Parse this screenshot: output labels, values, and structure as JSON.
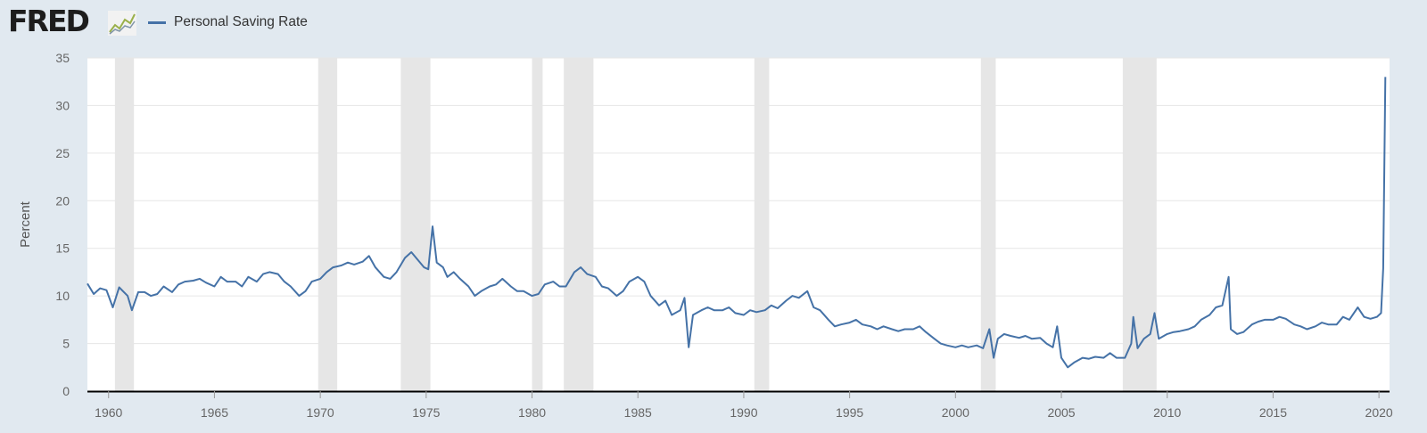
{
  "header": {
    "logo_text": "FRED",
    "logo_icon": "fred-chart-icon"
  },
  "colors": {
    "background": "#e1e9f0",
    "plot_background": "#ffffff",
    "series_line": "#4572a7",
    "recession_band": "#e6e6e6",
    "gridline": "#e6e6e6",
    "axis_line": "#000000"
  },
  "chart_data": {
    "type": "line",
    "title": "",
    "xlabel": "",
    "ylabel": "Percent",
    "xlim": [
      1959.0,
      2020.5
    ],
    "ylim": [
      0,
      35
    ],
    "yticks": [
      0,
      5,
      10,
      15,
      20,
      25,
      30,
      35
    ],
    "xticks": [
      1960,
      1965,
      1970,
      1975,
      1980,
      1985,
      1990,
      1995,
      2000,
      2005,
      2010,
      2015,
      2020
    ],
    "grid": "horizontal",
    "legend_position": "top-left",
    "recessions": [
      [
        1960.3,
        1961.2
      ],
      [
        1969.9,
        1970.8
      ],
      [
        1973.8,
        1975.2
      ],
      [
        1980.0,
        1980.5
      ],
      [
        1981.5,
        1982.9
      ],
      [
        1990.5,
        1991.2
      ],
      [
        2001.2,
        2001.9
      ],
      [
        2007.9,
        2009.5
      ]
    ],
    "series": [
      {
        "name": "Personal Saving Rate",
        "points": [
          [
            1959.0,
            11.3
          ],
          [
            1959.3,
            10.2
          ],
          [
            1959.6,
            10.8
          ],
          [
            1959.9,
            10.6
          ],
          [
            1960.2,
            8.8
          ],
          [
            1960.5,
            10.9
          ],
          [
            1960.9,
            10.0
          ],
          [
            1961.1,
            8.5
          ],
          [
            1961.4,
            10.4
          ],
          [
            1961.7,
            10.4
          ],
          [
            1962.0,
            10.0
          ],
          [
            1962.3,
            10.2
          ],
          [
            1962.6,
            11.0
          ],
          [
            1963.0,
            10.4
          ],
          [
            1963.3,
            11.2
          ],
          [
            1963.6,
            11.5
          ],
          [
            1964.0,
            11.6
          ],
          [
            1964.3,
            11.8
          ],
          [
            1964.6,
            11.4
          ],
          [
            1965.0,
            11.0
          ],
          [
            1965.3,
            12.0
          ],
          [
            1965.6,
            11.5
          ],
          [
            1966.0,
            11.5
          ],
          [
            1966.3,
            11.0
          ],
          [
            1966.6,
            12.0
          ],
          [
            1967.0,
            11.5
          ],
          [
            1967.3,
            12.3
          ],
          [
            1967.6,
            12.5
          ],
          [
            1968.0,
            12.3
          ],
          [
            1968.3,
            11.5
          ],
          [
            1968.6,
            11.0
          ],
          [
            1969.0,
            10.0
          ],
          [
            1969.3,
            10.5
          ],
          [
            1969.6,
            11.5
          ],
          [
            1970.0,
            11.8
          ],
          [
            1970.3,
            12.5
          ],
          [
            1970.6,
            13.0
          ],
          [
            1971.0,
            13.2
          ],
          [
            1971.3,
            13.5
          ],
          [
            1971.6,
            13.3
          ],
          [
            1972.0,
            13.6
          ],
          [
            1972.3,
            14.2
          ],
          [
            1972.6,
            13.0
          ],
          [
            1973.0,
            12.0
          ],
          [
            1973.3,
            11.8
          ],
          [
            1973.6,
            12.5
          ],
          [
            1974.0,
            14.0
          ],
          [
            1974.3,
            14.6
          ],
          [
            1974.6,
            13.8
          ],
          [
            1974.9,
            13.0
          ],
          [
            1975.1,
            12.8
          ],
          [
            1975.3,
            17.3
          ],
          [
            1975.5,
            13.5
          ],
          [
            1975.8,
            13.0
          ],
          [
            1976.0,
            12.0
          ],
          [
            1976.3,
            12.5
          ],
          [
            1976.6,
            11.8
          ],
          [
            1977.0,
            11.0
          ],
          [
            1977.3,
            10.0
          ],
          [
            1977.6,
            10.5
          ],
          [
            1978.0,
            11.0
          ],
          [
            1978.3,
            11.2
          ],
          [
            1978.6,
            11.8
          ],
          [
            1979.0,
            11.0
          ],
          [
            1979.3,
            10.5
          ],
          [
            1979.6,
            10.5
          ],
          [
            1980.0,
            10.0
          ],
          [
            1980.3,
            10.2
          ],
          [
            1980.6,
            11.2
          ],
          [
            1981.0,
            11.5
          ],
          [
            1981.3,
            11.0
          ],
          [
            1981.6,
            11.0
          ],
          [
            1982.0,
            12.5
          ],
          [
            1982.3,
            13.0
          ],
          [
            1982.6,
            12.3
          ],
          [
            1983.0,
            12.0
          ],
          [
            1983.3,
            11.0
          ],
          [
            1983.6,
            10.8
          ],
          [
            1984.0,
            10.0
          ],
          [
            1984.3,
            10.5
          ],
          [
            1984.6,
            11.5
          ],
          [
            1985.0,
            12.0
          ],
          [
            1985.3,
            11.5
          ],
          [
            1985.6,
            10.0
          ],
          [
            1986.0,
            9.0
          ],
          [
            1986.3,
            9.5
          ],
          [
            1986.6,
            8.0
          ],
          [
            1987.0,
            8.5
          ],
          [
            1987.2,
            9.8
          ],
          [
            1987.4,
            4.6
          ],
          [
            1987.6,
            8.0
          ],
          [
            1988.0,
            8.5
          ],
          [
            1988.3,
            8.8
          ],
          [
            1988.6,
            8.5
          ],
          [
            1989.0,
            8.5
          ],
          [
            1989.3,
            8.8
          ],
          [
            1989.6,
            8.2
          ],
          [
            1990.0,
            8.0
          ],
          [
            1990.3,
            8.5
          ],
          [
            1990.6,
            8.3
          ],
          [
            1991.0,
            8.5
          ],
          [
            1991.3,
            9.0
          ],
          [
            1991.6,
            8.7
          ],
          [
            1992.0,
            9.5
          ],
          [
            1992.3,
            10.0
          ],
          [
            1992.6,
            9.8
          ],
          [
            1993.0,
            10.5
          ],
          [
            1993.3,
            8.8
          ],
          [
            1993.6,
            8.5
          ],
          [
            1994.0,
            7.5
          ],
          [
            1994.3,
            6.8
          ],
          [
            1994.6,
            7.0
          ],
          [
            1995.0,
            7.2
          ],
          [
            1995.3,
            7.5
          ],
          [
            1995.6,
            7.0
          ],
          [
            1996.0,
            6.8
          ],
          [
            1996.3,
            6.5
          ],
          [
            1996.6,
            6.8
          ],
          [
            1997.0,
            6.5
          ],
          [
            1997.3,
            6.3
          ],
          [
            1997.6,
            6.5
          ],
          [
            1998.0,
            6.5
          ],
          [
            1998.3,
            6.8
          ],
          [
            1998.6,
            6.2
          ],
          [
            1999.0,
            5.5
          ],
          [
            1999.3,
            5.0
          ],
          [
            1999.6,
            4.8
          ],
          [
            2000.0,
            4.6
          ],
          [
            2000.3,
            4.8
          ],
          [
            2000.6,
            4.6
          ],
          [
            2001.0,
            4.8
          ],
          [
            2001.3,
            4.5
          ],
          [
            2001.6,
            6.5
          ],
          [
            2001.8,
            3.5
          ],
          [
            2002.0,
            5.5
          ],
          [
            2002.3,
            6.0
          ],
          [
            2002.6,
            5.8
          ],
          [
            2003.0,
            5.6
          ],
          [
            2003.3,
            5.8
          ],
          [
            2003.6,
            5.5
          ],
          [
            2004.0,
            5.6
          ],
          [
            2004.3,
            5.0
          ],
          [
            2004.6,
            4.6
          ],
          [
            2004.8,
            6.8
          ],
          [
            2005.0,
            3.5
          ],
          [
            2005.3,
            2.5
          ],
          [
            2005.6,
            3.0
          ],
          [
            2006.0,
            3.5
          ],
          [
            2006.3,
            3.4
          ],
          [
            2006.6,
            3.6
          ],
          [
            2007.0,
            3.5
          ],
          [
            2007.3,
            4.0
          ],
          [
            2007.6,
            3.5
          ],
          [
            2008.0,
            3.5
          ],
          [
            2008.3,
            5.0
          ],
          [
            2008.4,
            7.8
          ],
          [
            2008.6,
            4.5
          ],
          [
            2008.9,
            5.5
          ],
          [
            2009.2,
            6.0
          ],
          [
            2009.4,
            8.2
          ],
          [
            2009.6,
            5.5
          ],
          [
            2010.0,
            6.0
          ],
          [
            2010.3,
            6.2
          ],
          [
            2010.6,
            6.3
          ],
          [
            2011.0,
            6.5
          ],
          [
            2011.3,
            6.8
          ],
          [
            2011.6,
            7.5
          ],
          [
            2012.0,
            8.0
          ],
          [
            2012.3,
            8.8
          ],
          [
            2012.6,
            9.0
          ],
          [
            2012.9,
            12.0
          ],
          [
            2013.0,
            6.5
          ],
          [
            2013.3,
            6.0
          ],
          [
            2013.6,
            6.2
          ],
          [
            2014.0,
            7.0
          ],
          [
            2014.3,
            7.3
          ],
          [
            2014.6,
            7.5
          ],
          [
            2015.0,
            7.5
          ],
          [
            2015.3,
            7.8
          ],
          [
            2015.6,
            7.6
          ],
          [
            2016.0,
            7.0
          ],
          [
            2016.3,
            6.8
          ],
          [
            2016.6,
            6.5
          ],
          [
            2017.0,
            6.8
          ],
          [
            2017.3,
            7.2
          ],
          [
            2017.6,
            7.0
          ],
          [
            2018.0,
            7.0
          ],
          [
            2018.3,
            7.8
          ],
          [
            2018.6,
            7.5
          ],
          [
            2019.0,
            8.8
          ],
          [
            2019.3,
            7.8
          ],
          [
            2019.6,
            7.6
          ],
          [
            2019.9,
            7.8
          ],
          [
            2020.1,
            8.2
          ],
          [
            2020.2,
            12.9
          ],
          [
            2020.3,
            33.0
          ]
        ]
      }
    ]
  }
}
